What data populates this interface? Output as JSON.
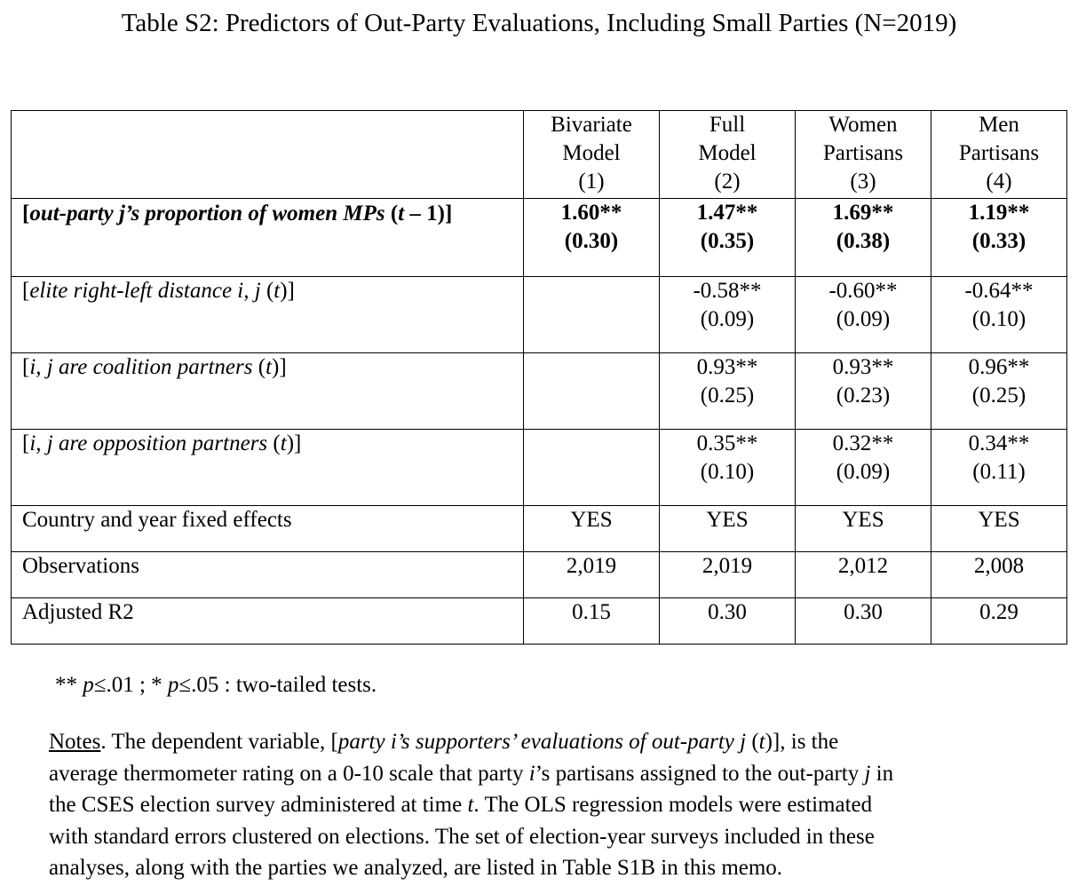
{
  "title": "Table S2: Predictors of Out-Party Evaluations, Including Small Parties (N=2019)",
  "table": {
    "columns": [
      {
        "line1": "Bivariate",
        "line2": "Model",
        "num": "(1)"
      },
      {
        "line1": "Full",
        "line2": "Model",
        "num": "(2)"
      },
      {
        "line1": "Women",
        "line2": "Partisans",
        "num": "(3)"
      },
      {
        "line1": "Men",
        "line2": "Partisans",
        "num": "(4)"
      }
    ],
    "rows": [
      {
        "label_bracket_open": "[",
        "label_italic": "out-party j’s proportion of women MPs",
        "label_mid": " (",
        "label_t": "t",
        "label_end": " – 1)]",
        "coef": [
          "1.60**",
          "1.47**",
          "1.69**",
          "1.19**"
        ],
        "se": [
          "(0.30)",
          "(0.35)",
          "(0.38)",
          "(0.33)"
        ]
      },
      {
        "label_bracket_open": "[",
        "label_italic": "elite right-left distance i, j",
        "label_mid": " (",
        "label_t": "t",
        "label_end": ")]",
        "coef": [
          "",
          "-0.58**",
          "-0.60**",
          "-0.64**"
        ],
        "se": [
          "",
          "(0.09)",
          "(0.09)",
          "(0.10)"
        ]
      },
      {
        "label_bracket_open": "[",
        "label_italic": "i, j are coalition partners",
        "label_mid": " (",
        "label_t": "t",
        "label_end": ")]",
        "coef": [
          "",
          "0.93**",
          "0.93**",
          "0.96**"
        ],
        "se": [
          "",
          "(0.25)",
          "(0.23)",
          "(0.25)"
        ]
      },
      {
        "label_bracket_open": "[",
        "label_italic": "i, j are opposition partners",
        "label_mid": " (",
        "label_t": "t",
        "label_end": ")]",
        "coef": [
          "",
          "0.35**",
          "0.32**",
          "0.34**"
        ],
        "se": [
          "",
          "(0.10)",
          "(0.09)",
          "(0.11)"
        ]
      }
    ],
    "fixed_effects": {
      "label": "Country and year fixed effects",
      "values": [
        "YES",
        "YES",
        "YES",
        "YES"
      ]
    },
    "observations": {
      "label": "Observations",
      "values": [
        "2,019",
        "2,019",
        "2,012",
        "2,008"
      ]
    },
    "adj_r2": {
      "label": "Adjusted R2",
      "values": [
        "0.15",
        "0.30",
        "0.30",
        "0.29"
      ]
    }
  },
  "footnote": {
    "part1": "** ",
    "p1": "p",
    "part2": "≤.01 ; * ",
    "p2": "p",
    "part3": "≤.05 : two-tailed tests."
  },
  "notes": {
    "heading": "Notes",
    "l1_a": ". The dependent variable, [",
    "l1_italic": "party i’s supporters’ evaluations of out-party j",
    "l1_b": " (",
    "l1_t": "t",
    "l1_c": ")], is the",
    "l2_a": "average thermometer rating on a 0-10 scale that party ",
    "l2_i": "i",
    "l2_b": "’s partisans assigned to the out-party ",
    "l2_j": "j",
    "l2_c": " in",
    "l3_a": "the CSES election survey administered at time ",
    "l3_t": "t",
    "l3_b": ".  The OLS regression models were estimated",
    "l4": "with standard errors clustered on elections. The set of election-year surveys included in these",
    "l5": "analyses, along with the parties we analyzed, are listed in Table S1B in this memo."
  }
}
